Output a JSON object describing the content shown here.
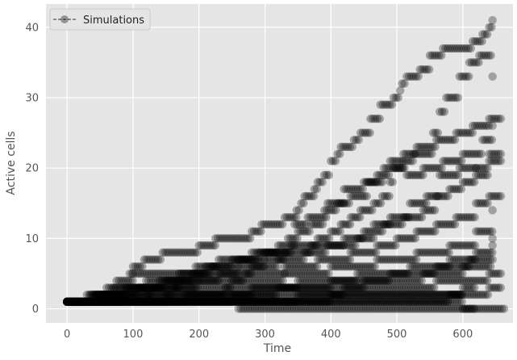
{
  "chart_data": {
    "type": "scatter",
    "xlabel": "Time",
    "ylabel": "Active cells",
    "xlim": [
      -32,
      676
    ],
    "ylim": [
      -2,
      43.3
    ],
    "xticks": [
      0,
      100,
      200,
      300,
      400,
      500,
      600
    ],
    "yticks": [
      0,
      10,
      20,
      30,
      40
    ],
    "grid": true,
    "legend": {
      "position": "top-left",
      "entries": [
        "Simulations"
      ]
    },
    "marker_color": "#000000",
    "marker_alpha": 0.3,
    "background": "#e5e5e5",
    "series": [
      {
        "name": "Simulations",
        "steps": [
          [
            [
              0,
              1
            ],
            [
              95,
              5
            ],
            [
              100,
              6
            ],
            [
              117,
              7
            ],
            [
              145,
              8
            ],
            [
              200,
              9
            ],
            [
              225,
              10
            ],
            [
              280,
              11
            ],
            [
              295,
              12
            ],
            [
              330,
              13
            ],
            [
              348,
              14
            ],
            [
              355,
              15
            ],
            [
              360,
              16
            ],
            [
              375,
              17
            ],
            [
              380,
              18
            ],
            [
              390,
              19
            ],
            [
              400,
              21
            ],
            [
              410,
              22
            ],
            [
              415,
              23
            ],
            [
              435,
              24
            ],
            [
              445,
              25
            ],
            [
              460,
              27
            ],
            [
              475,
              29
            ],
            [
              495,
              30
            ],
            [
              505,
              31
            ],
            [
              508,
              32
            ],
            [
              515,
              33
            ],
            [
              535,
              34
            ],
            [
              550,
              36
            ],
            [
              570,
              37
            ],
            [
              615,
              38
            ],
            [
              630,
              39
            ],
            [
              640,
              40
            ],
            [
              645,
              41
            ]
          ],
          [
            [
              0,
              1
            ],
            [
              30,
              2
            ],
            [
              60,
              3
            ],
            [
              75,
              4
            ],
            [
              100,
              5
            ],
            [
              195,
              6
            ],
            [
              230,
              7
            ],
            [
              290,
              8
            ],
            [
              340,
              9
            ],
            [
              380,
              10
            ],
            [
              400,
              11
            ],
            [
              415,
              12
            ],
            [
              430,
              13
            ],
            [
              445,
              14
            ],
            [
              465,
              15
            ],
            [
              478,
              16
            ],
            [
              490,
              18
            ],
            [
              495,
              20
            ],
            [
              510,
              21
            ],
            [
              525,
              22
            ],
            [
              555,
              25
            ],
            [
              565,
              28
            ],
            [
              575,
              30
            ],
            [
              595,
              33
            ],
            [
              610,
              35
            ],
            [
              625,
              36
            ],
            [
              645,
              33
            ]
          ],
          [
            [
              0,
              1
            ],
            [
              45,
              2
            ],
            [
              90,
              3
            ],
            [
              150,
              4
            ],
            [
              200,
              5
            ],
            [
              260,
              6
            ],
            [
              300,
              7
            ],
            [
              330,
              8
            ],
            [
              370,
              9
            ],
            [
              420,
              10
            ],
            [
              450,
              11
            ],
            [
              480,
              12
            ],
            [
              510,
              13
            ],
            [
              540,
              14
            ],
            [
              560,
              16
            ],
            [
              580,
              17
            ],
            [
              600,
              18
            ],
            [
              620,
              20
            ],
            [
              640,
              22
            ]
          ],
          [
            [
              0,
              1
            ],
            [
              60,
              2
            ],
            [
              130,
              3
            ],
            [
              200,
              4
            ],
            [
              270,
              5
            ],
            [
              330,
              6
            ],
            [
              380,
              7
            ],
            [
              430,
              8
            ],
            [
              470,
              9
            ],
            [
              500,
              10
            ],
            [
              530,
              11
            ],
            [
              560,
              12
            ],
            [
              590,
              13
            ],
            [
              620,
              15
            ],
            [
              640,
              16
            ]
          ],
          [
            [
              0,
              1
            ],
            [
              80,
              2
            ],
            [
              160,
              3
            ],
            [
              250,
              4
            ],
            [
              330,
              5
            ],
            [
              400,
              6
            ],
            [
              470,
              7
            ],
            [
              530,
              8
            ],
            [
              580,
              9
            ],
            [
              620,
              11
            ],
            [
              645,
              14
            ]
          ],
          [
            [
              0,
              1
            ],
            [
              150,
              2
            ],
            [
              280,
              3
            ],
            [
              400,
              4
            ],
            [
              490,
              5
            ],
            [
              560,
              6
            ],
            [
              610,
              7
            ],
            [
              645,
              9
            ]
          ],
          [
            [
              0,
              1
            ],
            [
              250,
              2
            ],
            [
              420,
              3
            ],
            [
              560,
              4
            ],
            [
              640,
              5
            ]
          ],
          [
            [
              0,
              1
            ],
            [
              350,
              2
            ],
            [
              600,
              3
            ]
          ],
          [
            [
              0,
              1
            ],
            [
              580,
              2
            ]
          ],
          [
            [
              0,
              1
            ],
            [
              600,
              0
            ]
          ],
          [
            [
              260,
              0
            ],
            [
              645,
              0
            ]
          ],
          [
            [
              0,
              1
            ],
            [
              40,
              2
            ],
            [
              80,
              3
            ],
            [
              140,
              4
            ],
            [
              190,
              5
            ],
            [
              220,
              6
            ],
            [
              260,
              7
            ],
            [
              300,
              8
            ],
            [
              335,
              10
            ],
            [
              350,
              11
            ],
            [
              370,
              12
            ],
            [
              390,
              14
            ],
            [
              410,
              15
            ],
            [
              430,
              16
            ],
            [
              455,
              18
            ],
            [
              470,
              19
            ],
            [
              490,
              21
            ],
            [
              510,
              22
            ],
            [
              530,
              23
            ],
            [
              560,
              24
            ],
            [
              590,
              25
            ],
            [
              615,
              26
            ],
            [
              640,
              27
            ]
          ],
          [
            [
              0,
              1
            ],
            [
              35,
              2
            ],
            [
              70,
              3
            ],
            [
              120,
              4
            ],
            [
              170,
              5
            ],
            [
              210,
              6
            ],
            [
              250,
              7
            ],
            [
              280,
              8
            ],
            [
              320,
              9
            ],
            [
              345,
              12
            ],
            [
              365,
              13
            ],
            [
              395,
              15
            ],
            [
              420,
              17
            ],
            [
              450,
              18
            ],
            [
              480,
              20
            ],
            [
              515,
              19
            ],
            [
              540,
              20
            ],
            [
              570,
              21
            ],
            [
              600,
              22
            ],
            [
              630,
              24
            ],
            [
              645,
              26
            ]
          ],
          [
            [
              0,
              1
            ],
            [
              55,
              2
            ],
            [
              110,
              3
            ],
            [
              170,
              4
            ],
            [
              230,
              5
            ],
            [
              280,
              6
            ],
            [
              320,
              7
            ],
            [
              360,
              8
            ],
            [
              395,
              9
            ],
            [
              440,
              10
            ],
            [
              465,
              12
            ],
            [
              490,
              13
            ],
            [
              520,
              15
            ],
            [
              545,
              16
            ],
            [
              565,
              19
            ],
            [
              595,
              20
            ],
            [
              620,
              19
            ],
            [
              640,
              21
            ]
          ],
          [
            [
              0,
              1
            ],
            [
              120,
              2
            ],
            [
              240,
              3
            ],
            [
              350,
              4
            ],
            [
              440,
              5
            ],
            [
              520,
              6
            ],
            [
              580,
              7
            ],
            [
              620,
              8
            ],
            [
              645,
              10
            ]
          ],
          [
            [
              0,
              1
            ],
            [
              180,
              2
            ],
            [
              320,
              3
            ],
            [
              450,
              4
            ],
            [
              540,
              5
            ],
            [
              600,
              6
            ],
            [
              645,
              7
            ]
          ],
          [
            [
              0,
              1
            ],
            [
              400,
              2
            ],
            [
              640,
              3
            ]
          ]
        ]
      }
    ]
  }
}
